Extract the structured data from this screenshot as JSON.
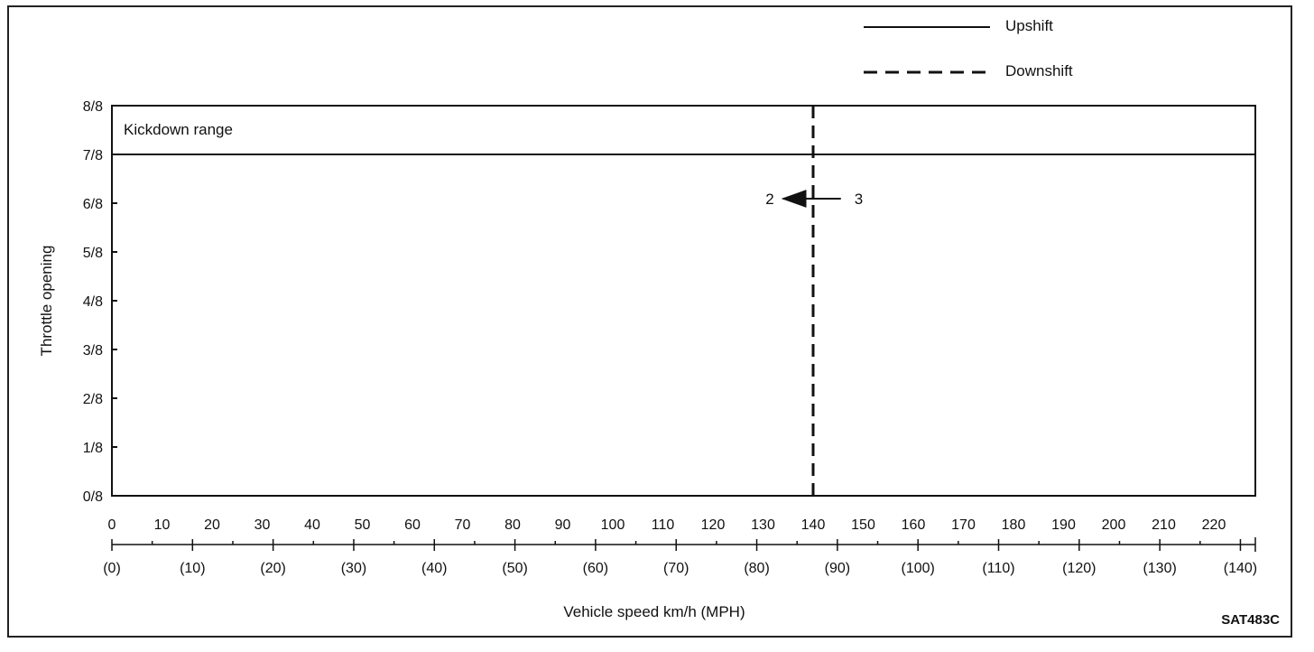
{
  "figure_code": "SAT483C",
  "legend": {
    "upshift_label": "Upshift",
    "downshift_label": "Downshift"
  },
  "chart_data": {
    "type": "line",
    "ylabel": "Throttle opening",
    "xlabel": "Vehicle speed km/h (MPH)",
    "y_ticks": [
      "0/8",
      "1/8",
      "2/8",
      "3/8",
      "4/8",
      "5/8",
      "6/8",
      "7/8",
      "8/8"
    ],
    "ylim": [
      0,
      8
    ],
    "x_ticks_kmh": [
      0,
      10,
      20,
      30,
      40,
      50,
      60,
      70,
      80,
      90,
      100,
      110,
      120,
      130,
      140,
      150,
      160,
      170,
      180,
      190,
      200,
      210,
      220
    ],
    "x_ticks_mph": [
      "(0)",
      "(10)",
      "(20)",
      "(30)",
      "(40)",
      "(50)",
      "(60)",
      "(70)",
      "(80)",
      "(90)",
      "(100)",
      "(110)",
      "(120)",
      "(130)",
      "(140)"
    ],
    "mph_values": [
      0,
      10,
      20,
      30,
      40,
      50,
      60,
      70,
      80,
      90,
      100,
      110,
      120,
      130,
      140
    ],
    "xlim_kmh": [
      0,
      228
    ],
    "kickdown_label": "Kickdown range",
    "kickdown_boundary_y": 7,
    "series": [
      {
        "name": "Downshift",
        "style": "dashed",
        "points": [
          {
            "x": 140,
            "y": 0
          },
          {
            "x": 140,
            "y": 8
          }
        ]
      }
    ],
    "annotation": {
      "from_label": "3",
      "to_label": "2",
      "arrow_y": 6,
      "arrow_from_x": 145,
      "arrow_to_x": 134
    },
    "grid": false
  }
}
